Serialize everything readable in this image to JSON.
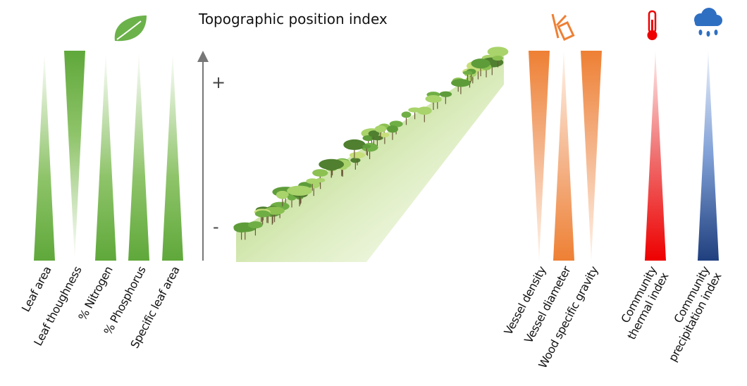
{
  "header": {
    "title": "Topographic position index"
  },
  "axis": {
    "high": "+",
    "low": "-"
  },
  "leaf_traits": [
    {
      "label": "Leaf area"
    },
    {
      "label": "Leaf thoughness"
    },
    {
      "label": "% Nitrogen"
    },
    {
      "label": "% Phosphorus"
    },
    {
      "label": "Specific leaf area"
    }
  ],
  "wood_traits": [
    {
      "label": "Vessel density"
    },
    {
      "label": "Vessel diameter"
    },
    {
      "label": "Wood specific gravity"
    }
  ],
  "climate": [
    {
      "lines": [
        "Community",
        "thermal index"
      ]
    },
    {
      "lines": [
        "Community",
        "precipitation index"
      ]
    }
  ]
}
